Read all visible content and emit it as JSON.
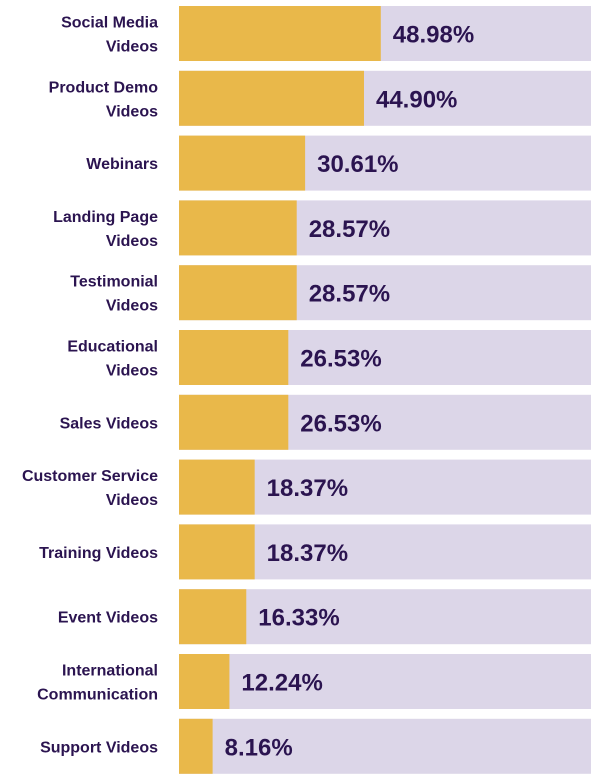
{
  "chart_data": {
    "type": "bar",
    "orientation": "horizontal",
    "categories": [
      [
        "Social Media",
        "Videos"
      ],
      [
        "Product Demo",
        "Videos"
      ],
      [
        "Webinars"
      ],
      [
        "Landing Page",
        "Videos"
      ],
      [
        "Testimonial",
        "Videos"
      ],
      [
        "Educational",
        "Videos"
      ],
      [
        "Sales Videos"
      ],
      [
        "Customer Service",
        "Videos"
      ],
      [
        "Training Videos"
      ],
      [
        "Event Videos"
      ],
      [
        "International",
        "Communication"
      ],
      [
        "Support Videos"
      ]
    ],
    "values": [
      48.98,
      44.9,
      30.61,
      28.57,
      28.57,
      26.53,
      26.53,
      18.37,
      18.37,
      16.33,
      12.24,
      8.16
    ],
    "value_labels": [
      "48.98%",
      "44.90%",
      "30.61%",
      "28.57%",
      "28.57%",
      "26.53%",
      "26.53%",
      "18.37%",
      "18.37%",
      "16.33%",
      "12.24%",
      "8.16%"
    ],
    "xlim": [
      0,
      100
    ],
    "grid": false,
    "legend": "none",
    "colors": {
      "bar": "#e9b84a",
      "track": "#dcd6e8",
      "text": "#2b1450"
    }
  }
}
